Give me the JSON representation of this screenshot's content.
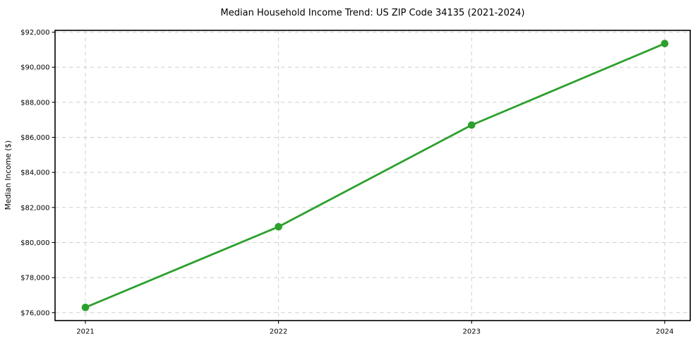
{
  "chart_data": {
    "type": "line",
    "title": "Median Household Income Trend: US ZIP Code 34135 (2021-2024)",
    "xlabel": "",
    "ylabel": "Median Income ($)",
    "categories": [
      "2021",
      "2022",
      "2023",
      "2024"
    ],
    "values": [
      76300,
      80900,
      86700,
      91350
    ],
    "yticks": [
      {
        "value": 76000,
        "label": "$76,000"
      },
      {
        "value": 78000,
        "label": "$78,000"
      },
      {
        "value": 80000,
        "label": "$80,000"
      },
      {
        "value": 82000,
        "label": "$82,000"
      },
      {
        "value": 84000,
        "label": "$84,000"
      },
      {
        "value": 86000,
        "label": "$86,000"
      },
      {
        "value": 88000,
        "label": "$88,000"
      },
      {
        "value": 90000,
        "label": "$90,000"
      },
      {
        "value": 92000,
        "label": "$92,000"
      }
    ],
    "ylim": [
      75548,
      92102
    ],
    "grid": true,
    "grid_style": "dashed",
    "legend_position": "none",
    "marker": "circle",
    "colors": {
      "line": "#2ca02c",
      "marker": "#2ca02c",
      "grid": "#cfcfcf",
      "axis": "#000000",
      "text": "#000000",
      "background": "#ffffff"
    }
  }
}
